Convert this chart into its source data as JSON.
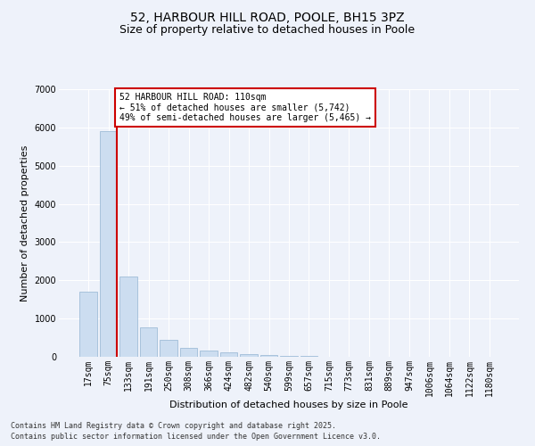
{
  "title_line1": "52, HARBOUR HILL ROAD, POOLE, BH15 3PZ",
  "title_line2": "Size of property relative to detached houses in Poole",
  "xlabel": "Distribution of detached houses by size in Poole",
  "ylabel": "Number of detached properties",
  "categories": [
    "17sqm",
    "75sqm",
    "133sqm",
    "191sqm",
    "250sqm",
    "308sqm",
    "366sqm",
    "424sqm",
    "482sqm",
    "540sqm",
    "599sqm",
    "657sqm",
    "715sqm",
    "773sqm",
    "831sqm",
    "889sqm",
    "947sqm",
    "1006sqm",
    "1064sqm",
    "1122sqm",
    "1180sqm"
  ],
  "values": [
    1700,
    5900,
    2100,
    780,
    450,
    230,
    170,
    120,
    80,
    55,
    30,
    20,
    10,
    5,
    3,
    2,
    1,
    1,
    0,
    0,
    0
  ],
  "bar_color": "#ccddf0",
  "bar_edge_color": "#a0bcd8",
  "vline_color": "#cc0000",
  "annotation_text": "52 HARBOUR HILL ROAD: 110sqm\n← 51% of detached houses are smaller (5,742)\n49% of semi-detached houses are larger (5,465) →",
  "annotation_box_color": "#ffffff",
  "annotation_box_edge_color": "#cc0000",
  "ylim": [
    0,
    7000
  ],
  "yticks": [
    0,
    1000,
    2000,
    3000,
    4000,
    5000,
    6000,
    7000
  ],
  "bg_color": "#eef2fa",
  "footer_line1": "Contains HM Land Registry data © Crown copyright and database right 2025.",
  "footer_line2": "Contains public sector information licensed under the Open Government Licence v3.0.",
  "grid_color": "#ffffff",
  "title_fontsize": 10,
  "subtitle_fontsize": 9,
  "tick_fontsize": 7,
  "label_fontsize": 8,
  "footer_fontsize": 6
}
